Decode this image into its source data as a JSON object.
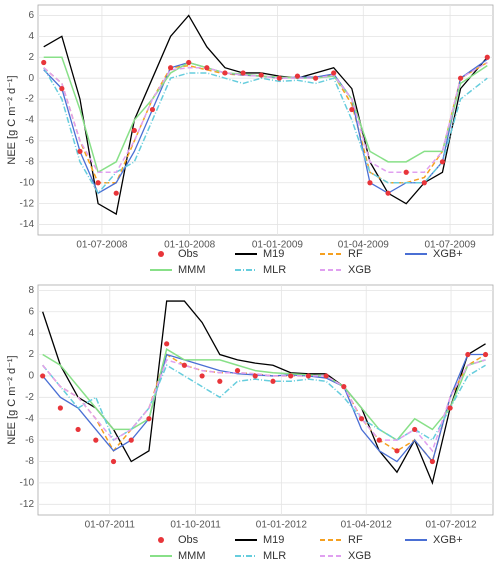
{
  "chart_data": [
    {
      "type": "line",
      "y_label": "NEE [g C m⁻² d⁻¹]",
      "xlim": [
        "2008-04-25",
        "2009-08-15"
      ],
      "xticks": [
        {
          "value": "2008-07-01",
          "label": "01-07-2008"
        },
        {
          "value": "2008-10-01",
          "label": "01-10-2008"
        },
        {
          "value": "2009-01-01",
          "label": "01-01-2009"
        },
        {
          "value": "2009-04-01",
          "label": "01-04-2009"
        },
        {
          "value": "2009-07-01",
          "label": "01-07-2009"
        }
      ],
      "ylim": [
        -15,
        7
      ],
      "yticks": [
        -14,
        -12,
        -10,
        -8,
        -6,
        -4,
        -2,
        0,
        2,
        4,
        6
      ],
      "grid": true,
      "x": [
        "2008-05-01",
        "2008-05-20",
        "2008-06-08",
        "2008-06-27",
        "2008-07-16",
        "2008-08-04",
        "2008-08-23",
        "2008-09-11",
        "2008-09-30",
        "2008-10-19",
        "2008-11-07",
        "2008-11-26",
        "2008-12-15",
        "2009-01-03",
        "2009-01-22",
        "2009-02-10",
        "2009-03-01",
        "2009-03-20",
        "2009-04-08",
        "2009-04-27",
        "2009-05-16",
        "2009-06-04",
        "2009-06-23",
        "2009-07-12",
        "2009-08-09"
      ],
      "series": [
        {
          "name": "Obs",
          "color": "#e8353a",
          "style": "point",
          "values": [
            1.5,
            -1,
            -7,
            -10,
            -11,
            -5,
            -3,
            1,
            1.5,
            1,
            0.5,
            0.5,
            0.3,
            0,
            0.2,
            0,
            0.5,
            -3,
            -10,
            -11,
            -9,
            -10,
            -8,
            0,
            2
          ]
        },
        {
          "name": "M19",
          "color": "#000000",
          "style": "solid",
          "values": [
            3,
            4,
            -2,
            -12,
            -13,
            -4,
            0,
            4,
            6,
            3,
            1,
            0.5,
            0.5,
            0.2,
            0,
            0.5,
            1,
            -1,
            -8,
            -11,
            -12,
            -10,
            -9,
            -1,
            2
          ]
        },
        {
          "name": "RF",
          "color": "#f5a020",
          "style": "dashed",
          "values": [
            1,
            -0.5,
            -6,
            -10,
            -10,
            -6,
            -2,
            1,
            1.2,
            0.8,
            0.4,
            0.3,
            0.2,
            0,
            0.1,
            0,
            0.3,
            -2.5,
            -9,
            -10,
            -10,
            -9.5,
            -7,
            0,
            1.5
          ]
        },
        {
          "name": "XGB+",
          "color": "#4a6fd4",
          "style": "solid",
          "values": [
            0.8,
            -1,
            -7,
            -11,
            -10,
            -7,
            -3,
            1,
            1.5,
            1,
            0.5,
            0.3,
            0.2,
            0,
            0.1,
            0.1,
            0.4,
            -2,
            -10,
            -11,
            -10,
            -10,
            -8,
            0,
            1.8
          ]
        },
        {
          "name": "MMM",
          "color": "#88e088",
          "style": "solid",
          "values": [
            2,
            2,
            -3,
            -9,
            -8,
            -4,
            -2,
            0.5,
            1.5,
            1,
            0.5,
            0.4,
            0.2,
            0.1,
            0,
            0,
            0.2,
            -2,
            -7,
            -8,
            -8,
            -7,
            -7,
            -0.5,
            1.2
          ]
        },
        {
          "name": "MLR",
          "color": "#66cddd",
          "style": "dotdash",
          "values": [
            1,
            -2,
            -8,
            -11,
            -9,
            -8,
            -4,
            0,
            0.5,
            0.5,
            0,
            -0.5,
            0,
            -0.3,
            -0.2,
            -0.5,
            0,
            -4,
            -9,
            -10,
            -10,
            -10,
            -8,
            -2,
            0
          ]
        },
        {
          "name": "XGB",
          "color": "#e0a0f0",
          "style": "dashed",
          "values": [
            1,
            -0.5,
            -6,
            -9,
            -9,
            -6,
            -2,
            0.8,
            1,
            1,
            0.5,
            0.3,
            0.2,
            0,
            0,
            0,
            0.3,
            -2,
            -8,
            -9,
            -9,
            -9,
            -7,
            0,
            1.5
          ]
        }
      ]
    },
    {
      "type": "line",
      "y_label": "NEE [g C m⁻² d⁻¹]",
      "xlim": [
        "2011-04-15",
        "2012-08-15"
      ],
      "xticks": [
        {
          "value": "2011-07-01",
          "label": "01-07-2011"
        },
        {
          "value": "2011-10-01",
          "label": "01-10-2011"
        },
        {
          "value": "2012-01-01",
          "label": "01-01-2012"
        },
        {
          "value": "2012-04-01",
          "label": "01-04-2012"
        },
        {
          "value": "2012-07-01",
          "label": "01-07-2012"
        }
      ],
      "ylim": [
        -13,
        8.5
      ],
      "yticks": [
        -12,
        -10,
        -8,
        -6,
        -4,
        -2,
        0,
        2,
        4,
        6,
        8
      ],
      "grid": true,
      "x": [
        "2011-04-20",
        "2011-05-09",
        "2011-05-28",
        "2011-06-16",
        "2011-07-05",
        "2011-07-24",
        "2011-08-12",
        "2011-08-31",
        "2011-09-19",
        "2011-10-08",
        "2011-10-27",
        "2011-11-15",
        "2011-12-04",
        "2011-12-23",
        "2012-01-11",
        "2012-01-30",
        "2012-02-18",
        "2012-03-08",
        "2012-03-27",
        "2012-04-15",
        "2012-05-04",
        "2012-05-23",
        "2012-06-11",
        "2012-06-30",
        "2012-07-19",
        "2012-08-07"
      ],
      "series": [
        {
          "name": "Obs",
          "color": "#e8353a",
          "style": "point",
          "values": [
            0,
            -3,
            -5,
            -6,
            -8,
            -6,
            -4,
            3,
            1,
            0,
            -0.5,
            0.5,
            0,
            -0.5,
            0,
            0,
            0,
            -1,
            -4,
            -6,
            -7,
            -5,
            -8,
            -3,
            2,
            2
          ]
        },
        {
          "name": "M19",
          "color": "#000000",
          "style": "solid",
          "values": [
            6,
            1,
            -2,
            -3,
            -5,
            -8,
            -7,
            7,
            7,
            5,
            2,
            1.5,
            1.2,
            1,
            0.3,
            0.2,
            0.2,
            -1,
            -3,
            -7,
            -9,
            -6,
            -10,
            -3,
            2,
            3
          ]
        },
        {
          "name": "RF",
          "color": "#f5a020",
          "style": "dashed",
          "values": [
            1,
            -1,
            -2,
            -4,
            -7,
            -5,
            -3,
            2,
            1,
            0.5,
            0.3,
            0.3,
            0.2,
            0,
            0,
            0,
            0,
            -1,
            -4,
            -6,
            -7,
            -6,
            -8,
            -2,
            1,
            2
          ]
        },
        {
          "name": "XGB+",
          "color": "#4a6fd4",
          "style": "solid",
          "values": [
            0,
            -2,
            -3,
            -5,
            -7,
            -6,
            -4,
            2,
            1.5,
            1,
            0.5,
            0.2,
            0.1,
            0,
            0.1,
            0,
            -0.2,
            -1,
            -5,
            -7,
            -8,
            -6,
            -8,
            -2,
            2,
            2
          ]
        },
        {
          "name": "MMM",
          "color": "#88e088",
          "style": "solid",
          "values": [
            2,
            1,
            -1,
            -3,
            -5,
            -5,
            -4,
            2.5,
            1.5,
            1.5,
            1.5,
            1,
            0.5,
            0.3,
            0.2,
            0.1,
            0,
            -1,
            -3,
            -5,
            -6,
            -4,
            -5,
            -3,
            1,
            1.5
          ]
        },
        {
          "name": "MLR",
          "color": "#66cddd",
          "style": "dotdash",
          "values": [
            1,
            -1,
            -3,
            -2,
            -6,
            -5,
            -3,
            1,
            0,
            -1,
            -2,
            -0.5,
            -0.3,
            -0.5,
            -0.5,
            -0.3,
            -0.5,
            -2,
            -4,
            -5,
            -6,
            -5,
            -6,
            -3,
            0,
            1
          ]
        },
        {
          "name": "XGB",
          "color": "#e0a0f0",
          "style": "dashed",
          "values": [
            1,
            -1,
            -2,
            -4,
            -6,
            -5,
            -3,
            1.5,
            1,
            0.5,
            0.3,
            0.3,
            0.2,
            0,
            0,
            0,
            0,
            -1,
            -4,
            -6,
            -6,
            -5,
            -7,
            -2,
            1,
            1.5
          ]
        }
      ]
    }
  ]
}
